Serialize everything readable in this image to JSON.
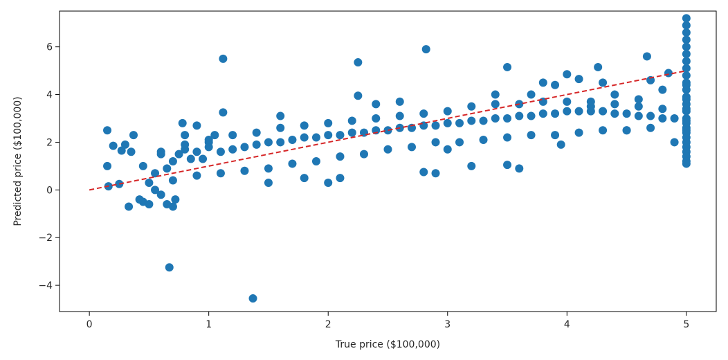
{
  "chart_data": {
    "type": "scatter",
    "title": "",
    "xlabel": "True price ($100,000)",
    "ylabel": "Predicted price ($100,000)",
    "xlim": [
      -0.25,
      5.25
    ],
    "ylim": [
      -5.1,
      7.5
    ],
    "xticks": [
      0,
      1,
      2,
      3,
      4,
      5
    ],
    "yticks": [
      -4,
      -2,
      0,
      2,
      4,
      6
    ],
    "xtick_labels": [
      "0",
      "1",
      "2",
      "3",
      "4",
      "5"
    ],
    "ytick_labels": [
      "−4",
      "−2",
      "0",
      "2",
      "4",
      "6"
    ],
    "grid": false,
    "marker_color": "#1f77b4",
    "reference_line": {
      "x": [
        0,
        5
      ],
      "y": [
        0,
        5
      ],
      "color": "#d62728",
      "style": "dashed"
    },
    "points": {
      "x": [
        0.15,
        0.15,
        0.16,
        0.2,
        0.25,
        0.27,
        0.3,
        0.33,
        0.35,
        0.37,
        0.42,
        0.45,
        0.5,
        0.55,
        0.6,
        0.65,
        0.67,
        0.7,
        0.72,
        0.78,
        0.8,
        0.9,
        1.0,
        1.05,
        1.12,
        1.12,
        1.37,
        1.5,
        1.6,
        1.8,
        2.0,
        2.1,
        2.25,
        2.25,
        2.4,
        2.6,
        2.8,
        2.82,
        2.9,
        3.0,
        3.2,
        3.4,
        3.5,
        3.5,
        3.6,
        3.7,
        3.8,
        3.9,
        3.95,
        4.0,
        4.1,
        4.2,
        4.26,
        4.3,
        4.4,
        4.5,
        4.6,
        4.67,
        4.7,
        4.8,
        4.85,
        4.9,
        0.45,
        0.55,
        0.6,
        0.65,
        0.7,
        0.75,
        0.8,
        0.85,
        0.9,
        0.95,
        1.0,
        1.1,
        1.2,
        1.3,
        1.4,
        1.5,
        1.6,
        1.7,
        1.8,
        1.9,
        2.0,
        2.1,
        2.2,
        2.3,
        2.4,
        2.5,
        2.6,
        2.7,
        2.8,
        2.9,
        3.0,
        3.1,
        3.2,
        3.3,
        3.4,
        3.5,
        3.6,
        3.7,
        3.8,
        3.9,
        4.0,
        4.1,
        4.2,
        4.3,
        4.4,
        4.5,
        4.6,
        4.7,
        4.8,
        4.9,
        0.5,
        0.7,
        0.9,
        1.1,
        1.3,
        1.5,
        1.7,
        1.9,
        2.1,
        2.3,
        2.5,
        2.7,
        2.9,
        3.1,
        3.3,
        3.5,
        3.7,
        3.9,
        4.1,
        4.3,
        4.5,
        4.7,
        0.6,
        0.8,
        1.0,
        1.2,
        1.4,
        1.6,
        1.8,
        2.0,
        2.2,
        2.4,
        2.6,
        2.8,
        3.0,
        3.2,
        3.4,
        3.6,
        3.8,
        4.0,
        4.2,
        4.4,
        4.6,
        4.8,
        5.0,
        5.0,
        5.0,
        5.0,
        5.0,
        5.0,
        5.0,
        5.0,
        5.0,
        5.0,
        5.0,
        5.0,
        5.0,
        5.0,
        5.0,
        5.0,
        5.0,
        5.0,
        5.0,
        5.0,
        5.0,
        5.0,
        5.0,
        5.0,
        5.0,
        5.0,
        5.0,
        5.0,
        5.0,
        5.0
      ],
      "y": [
        2.5,
        1.0,
        0.15,
        1.85,
        0.25,
        1.65,
        1.9,
        -0.7,
        1.6,
        2.3,
        -0.4,
        -0.5,
        -0.6,
        0.0,
        -0.2,
        -0.6,
        -3.25,
        -0.7,
        -0.4,
        2.8,
        2.3,
        2.7,
        2.0,
        2.3,
        5.5,
        3.25,
        -4.55,
        0.3,
        3.1,
        0.5,
        0.3,
        0.5,
        5.35,
        3.95,
        3.6,
        3.7,
        0.75,
        5.9,
        0.7,
        1.7,
        1.0,
        4.0,
        5.15,
        1.05,
        0.9,
        4.0,
        4.5,
        4.4,
        1.9,
        4.85,
        4.65,
        3.5,
        5.15,
        4.5,
        4.0,
        2.5,
        3.8,
        5.6,
        4.6,
        4.2,
        4.9,
        2.0,
        1.0,
        0.7,
        1.5,
        0.9,
        1.2,
        1.5,
        1.7,
        1.3,
        1.6,
        1.3,
        1.8,
        1.6,
        1.7,
        1.8,
        1.9,
        2.0,
        2.0,
        2.1,
        2.2,
        2.2,
        2.3,
        2.3,
        2.4,
        2.4,
        2.5,
        2.5,
        2.6,
        2.6,
        2.7,
        2.7,
        2.8,
        2.8,
        2.9,
        2.9,
        3.0,
        3.0,
        3.1,
        3.1,
        3.2,
        3.2,
        3.3,
        3.3,
        3.3,
        3.3,
        3.2,
        3.2,
        3.1,
        3.1,
        3.0,
        3.0,
        0.3,
        0.4,
        0.6,
        0.7,
        0.8,
        0.9,
        1.1,
        1.2,
        1.4,
        1.5,
        1.7,
        1.8,
        2.0,
        2.0,
        2.1,
        2.2,
        2.3,
        2.3,
        2.4,
        2.5,
        2.5,
        2.6,
        1.6,
        1.9,
        2.1,
        2.3,
        2.4,
        2.6,
        2.7,
        2.8,
        2.9,
        3.0,
        3.1,
        3.2,
        3.3,
        3.5,
        3.6,
        3.6,
        3.7,
        3.7,
        3.7,
        3.6,
        3.5,
        3.4,
        7.2,
        6.9,
        6.6,
        6.3,
        6.0,
        5.7,
        5.4,
        5.1,
        4.8,
        4.5,
        4.2,
        3.9,
        3.6,
        3.3,
        3.0,
        2.8,
        2.6,
        2.4,
        2.2,
        2.0,
        1.8,
        1.6,
        1.4,
        1.2,
        1.1,
        2.9,
        3.4,
        2.5,
        3.8,
        4.4
      ]
    }
  }
}
